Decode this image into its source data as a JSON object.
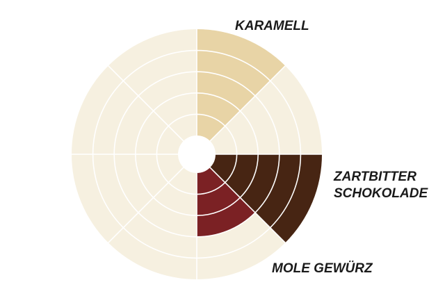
{
  "chart_data": {
    "type": "polar-area",
    "max_value": 5,
    "rings": 5,
    "sectors": 8,
    "background_color": "#f6f0e0",
    "grid_color": "#ffffff",
    "series": [
      {
        "label": "KARAMELL",
        "label_lines": [
          "KARAMELL"
        ],
        "sector": 0,
        "value": 5,
        "color": "#e8d4a6"
      },
      {
        "label": "ZARTBITTER SCHOKOLADE",
        "label_lines": [
          "ZARTBITTER",
          "SCHOKOLADE"
        ],
        "sector": 2,
        "value": 5,
        "color": "#472513"
      },
      {
        "label": "MOLE GEWÜRZ",
        "label_lines": [
          "MOLE GEWÜRZ"
        ],
        "sector": 3,
        "value": 3,
        "color": "#7b2124"
      }
    ]
  }
}
